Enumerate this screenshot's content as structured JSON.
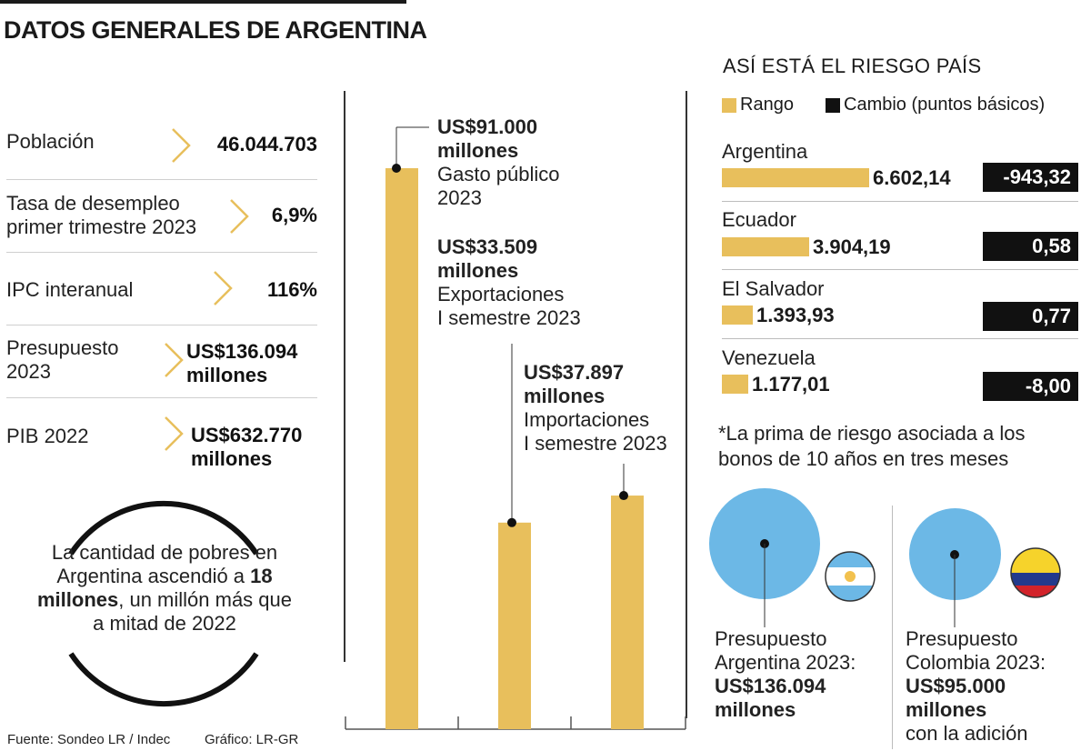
{
  "title": "DATOS GENERALES DE ARGENTINA",
  "stats": [
    {
      "label": "Población",
      "value": "46.044.703"
    },
    {
      "label": "Tasa de desempleo primer trimestre 2023",
      "value": "6,9%"
    },
    {
      "label": "IPC interanual",
      "value": "116%"
    },
    {
      "label": "Presupuesto 2023",
      "value": "US$136.094 millones"
    },
    {
      "label": "PIB 2022",
      "value": "US$632.770 millones"
    }
  ],
  "poverty": {
    "prefix": "La cantidad de pobres en Argentina ascendió a",
    "bold": "18 millones",
    "suffix": ", un millón más que a mitad de 2022"
  },
  "chart_data": [
    {
      "type": "bar",
      "categories": [
        "Gasto público 2023",
        "Exportaciones I semestre 2023",
        "Importaciones I semestre 2023"
      ],
      "values": [
        91000,
        33509,
        37897
      ],
      "unit": "US$ millones",
      "labels": [
        {
          "value": "US$91.000",
          "unit": "millones",
          "desc1": "Gasto público",
          "desc2": "2023"
        },
        {
          "value": "US$33.509",
          "unit": "millones",
          "desc1": "Exportaciones",
          "desc2": "I semestre 2023"
        },
        {
          "value": "US$37.897",
          "unit": "millones",
          "desc1": "Importaciones",
          "desc2": "I semestre 2023"
        }
      ],
      "color": "#e8bf5c"
    },
    {
      "type": "bar",
      "title": "ASÍ ESTÁ EL RIESGO PAÍS",
      "legend": [
        {
          "name": "Rango",
          "color": "#e8bf5c"
        },
        {
          "name": "Cambio (puntos básicos)",
          "color": "#111111"
        }
      ],
      "categories": [
        "Argentina",
        "Ecuador",
        "El Salvador",
        "Venezuela"
      ],
      "series": [
        {
          "name": "Rango",
          "values": [
            6602.14,
            3904.19,
            1393.93,
            1177.01
          ],
          "labels": [
            "6.602,14",
            "3.904,19",
            "1.393,93",
            "1.177,01"
          ]
        },
        {
          "name": "Cambio (puntos básicos)",
          "values": [
            -943.32,
            0.58,
            0.77,
            -8.0
          ],
          "labels": [
            "-943,32",
            "0,58",
            "0,77",
            "-8,00"
          ]
        }
      ],
      "note": "*La prima de riesgo asociada a los bonos de 10 años  en tres meses"
    },
    {
      "type": "scatter",
      "categories": [
        "Argentina",
        "Colombia"
      ],
      "values": [
        136094,
        95000
      ],
      "labels": [
        {
          "line1": "Presupuesto",
          "line2": "Argentina 2023:",
          "value": "US$136.094",
          "unit": "millones",
          "extra": ""
        },
        {
          "line1": "Presupuesto",
          "line2": "Colombia 2023:",
          "value": "US$95.000",
          "unit": "millones",
          "extra": "con la adición"
        }
      ],
      "color": "#6cb8e6"
    }
  ],
  "footer": {
    "source": "Fuente: Sondeo LR / Indec",
    "graphic": "Gráfico: LR-GR"
  }
}
